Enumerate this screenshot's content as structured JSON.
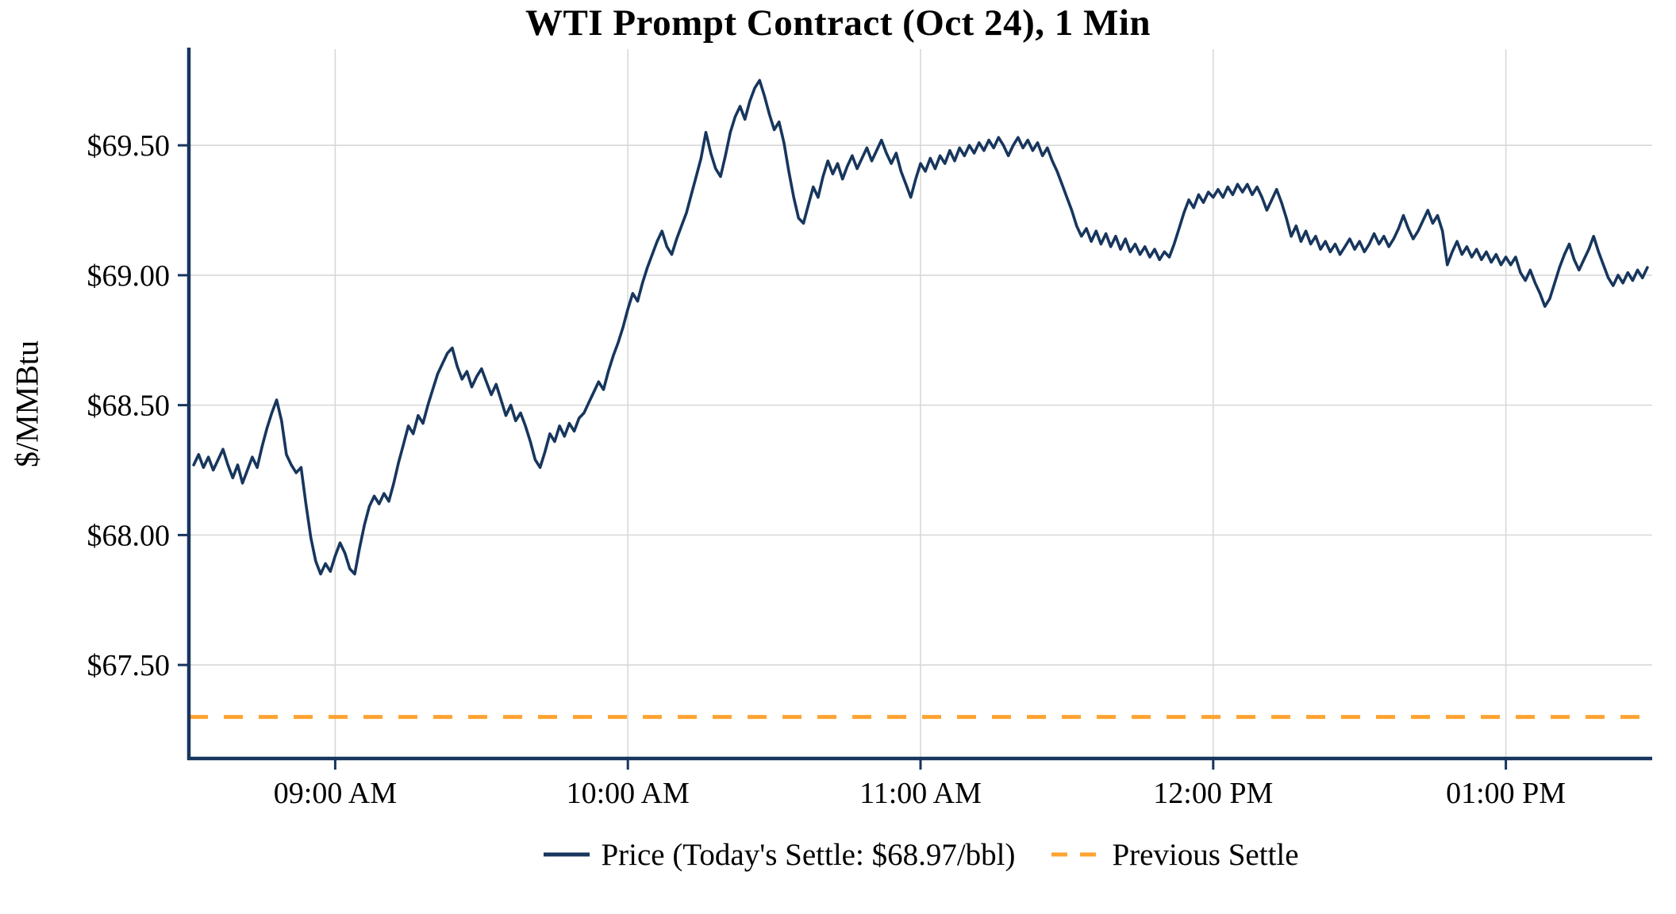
{
  "title": "WTI Prompt Contract (Oct 24), 1 Min",
  "y_axis_label": "$/MMBtu",
  "legend": {
    "price_label": "Price (Today's Settle: $68.97/bbl)",
    "prev_settle_label": "Previous Settle"
  },
  "colors": {
    "price_line": "#17365d",
    "prev_settle_line": "#ffa330",
    "grid": "#d8d8d8",
    "axis": "#17365d",
    "text": "#000000"
  },
  "chart_data": {
    "type": "line",
    "title": "WTI Prompt Contract (Oct 24), 1 Min",
    "xlabel": "",
    "ylabel": "$/MMBtu",
    "x_unit": "minutes_since_midnight",
    "x_range": [
      510,
      810
    ],
    "y_range": [
      67.14,
      69.87
    ],
    "grid": true,
    "legend_position": "bottom",
    "todays_settle": 68.97,
    "previous_settle": 67.3,
    "x_ticks": [
      {
        "t": 540,
        "label": "09:00 AM"
      },
      {
        "t": 600,
        "label": "10:00 AM"
      },
      {
        "t": 660,
        "label": "11:00 AM"
      },
      {
        "t": 720,
        "label": "12:00 PM"
      },
      {
        "t": 780,
        "label": "01:00 PM"
      }
    ],
    "y_ticks": [
      {
        "v": 67.5,
        "label": "$67.50"
      },
      {
        "v": 68.0,
        "label": "$68.00"
      },
      {
        "v": 68.5,
        "label": "$68.50"
      },
      {
        "v": 69.0,
        "label": "$69.00"
      },
      {
        "v": 69.5,
        "label": "$69.50"
      }
    ],
    "series": [
      {
        "name": "Price",
        "style": "solid",
        "color": "#17365d",
        "points": [
          [
            511,
            68.27
          ],
          [
            512,
            68.31
          ],
          [
            513,
            68.26
          ],
          [
            514,
            68.3
          ],
          [
            515,
            68.25
          ],
          [
            516,
            68.29
          ],
          [
            517,
            68.33
          ],
          [
            518,
            68.27
          ],
          [
            519,
            68.22
          ],
          [
            520,
            68.27
          ],
          [
            521,
            68.2
          ],
          [
            522,
            68.25
          ],
          [
            523,
            68.3
          ],
          [
            524,
            68.26
          ],
          [
            525,
            68.34
          ],
          [
            526,
            68.41
          ],
          [
            527,
            68.47
          ],
          [
            528,
            68.52
          ],
          [
            529,
            68.44
          ],
          [
            530,
            68.31
          ],
          [
            531,
            68.27
          ],
          [
            532,
            68.24
          ],
          [
            533,
            68.26
          ],
          [
            534,
            68.12
          ],
          [
            535,
            67.99
          ],
          [
            536,
            67.9
          ],
          [
            537,
            67.85
          ],
          [
            538,
            67.89
          ],
          [
            539,
            67.86
          ],
          [
            540,
            67.92
          ],
          [
            541,
            67.97
          ],
          [
            542,
            67.93
          ],
          [
            543,
            67.87
          ],
          [
            544,
            67.85
          ],
          [
            545,
            67.95
          ],
          [
            546,
            68.04
          ],
          [
            547,
            68.11
          ],
          [
            548,
            68.15
          ],
          [
            549,
            68.12
          ],
          [
            550,
            68.16
          ],
          [
            551,
            68.13
          ],
          [
            552,
            68.2
          ],
          [
            553,
            68.28
          ],
          [
            554,
            68.35
          ],
          [
            555,
            68.42
          ],
          [
            556,
            68.39
          ],
          [
            557,
            68.46
          ],
          [
            558,
            68.43
          ],
          [
            559,
            68.5
          ],
          [
            560,
            68.56
          ],
          [
            561,
            68.62
          ],
          [
            562,
            68.66
          ],
          [
            563,
            68.7
          ],
          [
            564,
            68.72
          ],
          [
            565,
            68.65
          ],
          [
            566,
            68.6
          ],
          [
            567,
            68.63
          ],
          [
            568,
            68.57
          ],
          [
            569,
            68.61
          ],
          [
            570,
            68.64
          ],
          [
            571,
            68.59
          ],
          [
            572,
            68.54
          ],
          [
            573,
            68.58
          ],
          [
            574,
            68.52
          ],
          [
            575,
            68.46
          ],
          [
            576,
            68.5
          ],
          [
            577,
            68.44
          ],
          [
            578,
            68.47
          ],
          [
            579,
            68.42
          ],
          [
            580,
            68.36
          ],
          [
            581,
            68.29
          ],
          [
            582,
            68.26
          ],
          [
            583,
            68.32
          ],
          [
            584,
            68.39
          ],
          [
            585,
            68.36
          ],
          [
            586,
            68.42
          ],
          [
            587,
            68.38
          ],
          [
            588,
            68.43
          ],
          [
            589,
            68.4
          ],
          [
            590,
            68.45
          ],
          [
            591,
            68.47
          ],
          [
            592,
            68.51
          ],
          [
            593,
            68.55
          ],
          [
            594,
            68.59
          ],
          [
            595,
            68.56
          ],
          [
            596,
            68.63
          ],
          [
            597,
            68.69
          ],
          [
            598,
            68.74
          ],
          [
            599,
            68.8
          ],
          [
            600,
            68.87
          ],
          [
            601,
            68.93
          ],
          [
            602,
            68.9
          ],
          [
            603,
            68.97
          ],
          [
            604,
            69.03
          ],
          [
            605,
            69.08
          ],
          [
            606,
            69.13
          ],
          [
            607,
            69.17
          ],
          [
            608,
            69.11
          ],
          [
            609,
            69.08
          ],
          [
            610,
            69.14
          ],
          [
            611,
            69.19
          ],
          [
            612,
            69.24
          ],
          [
            613,
            69.31
          ],
          [
            614,
            69.38
          ],
          [
            615,
            69.45
          ],
          [
            616,
            69.55
          ],
          [
            617,
            69.47
          ],
          [
            618,
            69.41
          ],
          [
            619,
            69.38
          ],
          [
            620,
            69.46
          ],
          [
            621,
            69.55
          ],
          [
            622,
            69.61
          ],
          [
            623,
            69.65
          ],
          [
            624,
            69.6
          ],
          [
            625,
            69.67
          ],
          [
            626,
            69.72
          ],
          [
            627,
            69.75
          ],
          [
            628,
            69.69
          ],
          [
            629,
            69.62
          ],
          [
            630,
            69.56
          ],
          [
            631,
            69.59
          ],
          [
            632,
            69.51
          ],
          [
            633,
            69.4
          ],
          [
            634,
            69.3
          ],
          [
            635,
            69.22
          ],
          [
            636,
            69.2
          ],
          [
            637,
            69.27
          ],
          [
            638,
            69.34
          ],
          [
            639,
            69.3
          ],
          [
            640,
            69.38
          ],
          [
            641,
            69.44
          ],
          [
            642,
            69.39
          ],
          [
            643,
            69.43
          ],
          [
            644,
            69.37
          ],
          [
            645,
            69.42
          ],
          [
            646,
            69.46
          ],
          [
            647,
            69.41
          ],
          [
            648,
            69.45
          ],
          [
            649,
            69.49
          ],
          [
            650,
            69.44
          ],
          [
            651,
            69.48
          ],
          [
            652,
            69.52
          ],
          [
            653,
            69.47
          ],
          [
            654,
            69.43
          ],
          [
            655,
            69.47
          ],
          [
            656,
            69.4
          ],
          [
            657,
            69.35
          ],
          [
            658,
            69.3
          ],
          [
            659,
            69.37
          ],
          [
            660,
            69.43
          ],
          [
            661,
            69.4
          ],
          [
            662,
            69.45
          ],
          [
            663,
            69.41
          ],
          [
            664,
            69.46
          ],
          [
            665,
            69.43
          ],
          [
            666,
            69.48
          ],
          [
            667,
            69.44
          ],
          [
            668,
            69.49
          ],
          [
            669,
            69.46
          ],
          [
            670,
            69.5
          ],
          [
            671,
            69.47
          ],
          [
            672,
            69.51
          ],
          [
            673,
            69.48
          ],
          [
            674,
            69.52
          ],
          [
            675,
            69.49
          ],
          [
            676,
            69.53
          ],
          [
            677,
            69.5
          ],
          [
            678,
            69.46
          ],
          [
            679,
            69.5
          ],
          [
            680,
            69.53
          ],
          [
            681,
            69.49
          ],
          [
            682,
            69.52
          ],
          [
            683,
            69.48
          ],
          [
            684,
            69.51
          ],
          [
            685,
            69.46
          ],
          [
            686,
            69.49
          ],
          [
            687,
            69.44
          ],
          [
            688,
            69.4
          ],
          [
            689,
            69.35
          ],
          [
            690,
            69.3
          ],
          [
            691,
            69.25
          ],
          [
            692,
            69.19
          ],
          [
            693,
            69.15
          ],
          [
            694,
            69.18
          ],
          [
            695,
            69.13
          ],
          [
            696,
            69.17
          ],
          [
            697,
            69.12
          ],
          [
            698,
            69.16
          ],
          [
            699,
            69.11
          ],
          [
            700,
            69.15
          ],
          [
            701,
            69.1
          ],
          [
            702,
            69.14
          ],
          [
            703,
            69.09
          ],
          [
            704,
            69.12
          ],
          [
            705,
            69.08
          ],
          [
            706,
            69.11
          ],
          [
            707,
            69.07
          ],
          [
            708,
            69.1
          ],
          [
            709,
            69.06
          ],
          [
            710,
            69.09
          ],
          [
            711,
            69.07
          ],
          [
            712,
            69.12
          ],
          [
            713,
            69.18
          ],
          [
            714,
            69.24
          ],
          [
            715,
            69.29
          ],
          [
            716,
            69.26
          ],
          [
            717,
            69.31
          ],
          [
            718,
            69.28
          ],
          [
            719,
            69.32
          ],
          [
            720,
            69.3
          ],
          [
            721,
            69.33
          ],
          [
            722,
            69.3
          ],
          [
            723,
            69.34
          ],
          [
            724,
            69.31
          ],
          [
            725,
            69.35
          ],
          [
            726,
            69.32
          ],
          [
            727,
            69.35
          ],
          [
            728,
            69.31
          ],
          [
            729,
            69.34
          ],
          [
            730,
            69.3
          ],
          [
            731,
            69.25
          ],
          [
            732,
            69.29
          ],
          [
            733,
            69.33
          ],
          [
            734,
            69.28
          ],
          [
            735,
            69.22
          ],
          [
            736,
            69.15
          ],
          [
            737,
            69.19
          ],
          [
            738,
            69.13
          ],
          [
            739,
            69.17
          ],
          [
            740,
            69.12
          ],
          [
            741,
            69.15
          ],
          [
            742,
            69.1
          ],
          [
            743,
            69.13
          ],
          [
            744,
            69.09
          ],
          [
            745,
            69.12
          ],
          [
            746,
            69.08
          ],
          [
            747,
            69.11
          ],
          [
            748,
            69.14
          ],
          [
            749,
            69.1
          ],
          [
            750,
            69.13
          ],
          [
            751,
            69.09
          ],
          [
            752,
            69.12
          ],
          [
            753,
            69.16
          ],
          [
            754,
            69.12
          ],
          [
            755,
            69.15
          ],
          [
            756,
            69.11
          ],
          [
            757,
            69.14
          ],
          [
            758,
            69.18
          ],
          [
            759,
            69.23
          ],
          [
            760,
            69.18
          ],
          [
            761,
            69.14
          ],
          [
            762,
            69.17
          ],
          [
            763,
            69.21
          ],
          [
            764,
            69.25
          ],
          [
            765,
            69.2
          ],
          [
            766,
            69.23
          ],
          [
            767,
            69.17
          ],
          [
            768,
            69.04
          ],
          [
            769,
            69.09
          ],
          [
            770,
            69.13
          ],
          [
            771,
            69.08
          ],
          [
            772,
            69.11
          ],
          [
            773,
            69.07
          ],
          [
            774,
            69.1
          ],
          [
            775,
            69.06
          ],
          [
            776,
            69.09
          ],
          [
            777,
            69.05
          ],
          [
            778,
            69.08
          ],
          [
            779,
            69.04
          ],
          [
            780,
            69.07
          ],
          [
            781,
            69.04
          ],
          [
            782,
            69.07
          ],
          [
            783,
            69.01
          ],
          [
            784,
            68.98
          ],
          [
            785,
            69.02
          ],
          [
            786,
            68.97
          ],
          [
            787,
            68.93
          ],
          [
            788,
            68.88
          ],
          [
            789,
            68.91
          ],
          [
            790,
            68.97
          ],
          [
            791,
            69.03
          ],
          [
            792,
            69.08
          ],
          [
            793,
            69.12
          ],
          [
            794,
            69.06
          ],
          [
            795,
            69.02
          ],
          [
            796,
            69.06
          ],
          [
            797,
            69.1
          ],
          [
            798,
            69.15
          ],
          [
            799,
            69.09
          ],
          [
            800,
            69.04
          ],
          [
            801,
            68.99
          ],
          [
            802,
            68.96
          ],
          [
            803,
            69.0
          ],
          [
            804,
            68.97
          ],
          [
            805,
            69.01
          ],
          [
            806,
            68.98
          ],
          [
            807,
            69.02
          ],
          [
            808,
            68.99
          ],
          [
            809,
            69.03
          ]
        ]
      },
      {
        "name": "Previous Settle",
        "style": "dashed",
        "color": "#ffa330",
        "value": 67.3
      }
    ]
  }
}
